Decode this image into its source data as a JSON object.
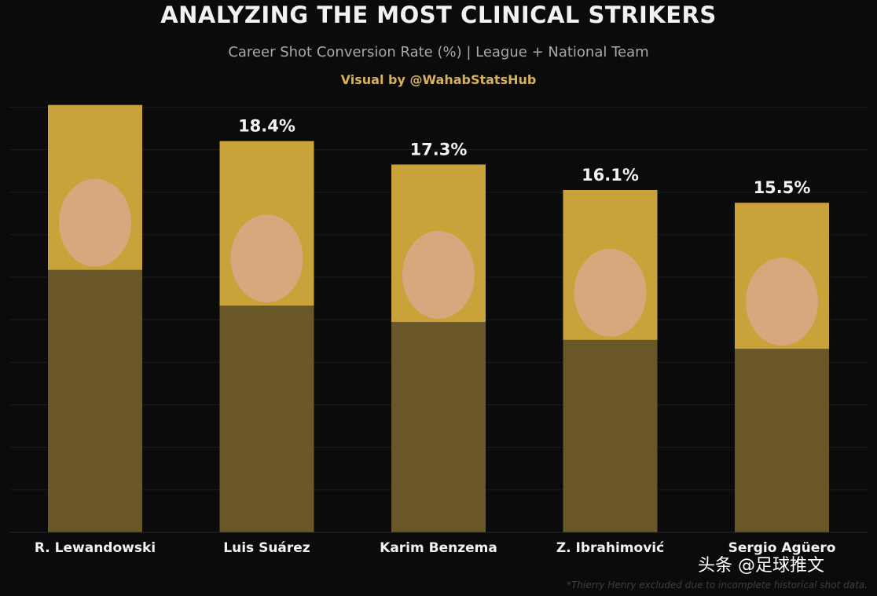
{
  "chart_data": {
    "type": "bar",
    "title": "ANALYZING THE MOST CLINICAL STRIKERS",
    "subtitle": "Career Shot Conversion Rate (%) | League + National Team",
    "credit": "Visual by @WahabStatsHub",
    "categories": [
      "R. Lewandowski",
      "Luis Suárez",
      "Karim Benzema",
      "Z. Ibrahimović",
      "Sergio Agüero"
    ],
    "values": [
      20.1,
      18.4,
      17.3,
      16.1,
      15.5
    ],
    "value_labels": [
      "",
      "18.4%",
      "17.3%",
      "16.1%",
      "15.5%"
    ],
    "xlabel": "",
    "ylabel": "",
    "ylim": [
      0,
      20.9
    ],
    "grid": true,
    "colors": {
      "background": "#0b0b0c",
      "bar": "#c9a23a",
      "text": "#f2f2f2",
      "credit": "#d8b25a"
    },
    "footnote": "*Thierry Henry excluded due to incomplete historical shot data."
  },
  "watermark": "头条 @足球推文"
}
